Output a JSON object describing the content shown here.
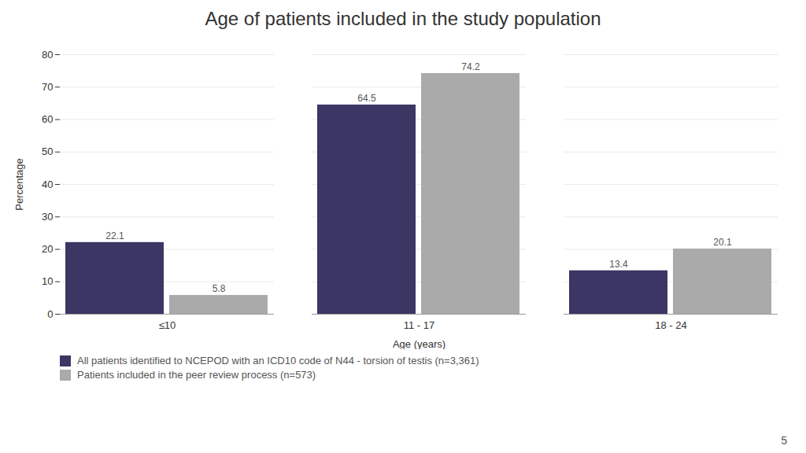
{
  "chart_data": {
    "type": "bar",
    "title": "Age of patients included in the study population",
    "xlabel": "Age (years)",
    "ylabel": "Percentage",
    "categories": [
      "≤10",
      "11 - 17",
      "18 - 24"
    ],
    "series": [
      {
        "name": "All patients identified to NCEPOD with an ICD10 code of N44 - torsion of testis (n=3,361)",
        "color": "#3b3664",
        "values": [
          22.1,
          64.5,
          13.4
        ]
      },
      {
        "name": "Patients included in the peer review process (n=573)",
        "color": "#aaaaaa",
        "values": [
          5.8,
          74.2,
          20.1
        ]
      }
    ],
    "ylim": [
      0,
      80
    ],
    "yticks": [
      0,
      10,
      20,
      30,
      40,
      50,
      60,
      70,
      80
    ],
    "grid": true,
    "data_labels": true,
    "legend": "bottom",
    "annotations": [
      "5"
    ]
  }
}
